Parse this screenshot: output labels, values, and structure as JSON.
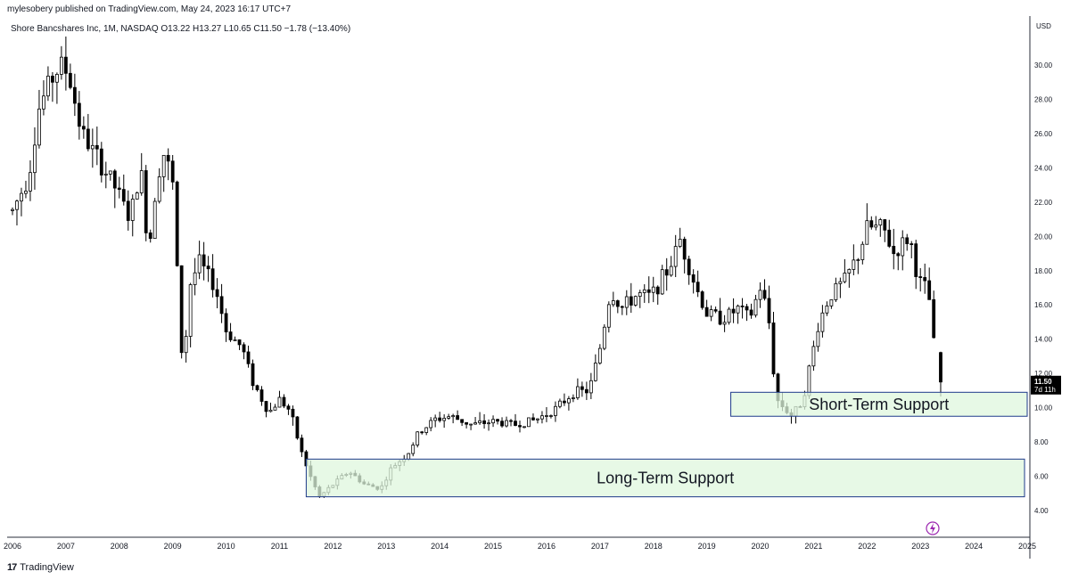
{
  "header": {
    "published_line": "mylesobery published on TradingView.com, May 24, 2023 16:17 UTC+7",
    "legend_line": "Shore Bancshares Inc, 1M, NASDAQ  O13.22  H13.27  L10.65  C11.50  −1.78 (−13.40%)"
  },
  "footer": {
    "brand": "TradingView",
    "logo_glyph": "17"
  },
  "colors": {
    "up": "#ffffff",
    "down": "#000000",
    "wick": "#000000",
    "zone_fill": "#dff7de",
    "zone_border": "#1e3a8a",
    "grid": "#ffffff"
  },
  "chart_data": {
    "type": "candlestick",
    "interval": "1M",
    "currency": "USD",
    "ylim": [
      3.0,
      32.0
    ],
    "y_ticks": [
      "4.00",
      "6.00",
      "8.00",
      "10.00",
      "12.00",
      "14.00",
      "16.00",
      "18.00",
      "20.00",
      "22.00",
      "24.00",
      "26.00",
      "28.00",
      "30.00"
    ],
    "x_ticks": [
      "2006",
      "2007",
      "2008",
      "2009",
      "2010",
      "2011",
      "2012",
      "2013",
      "2014",
      "2015",
      "2016",
      "2017",
      "2018",
      "2019",
      "2020",
      "2021",
      "2022",
      "2023",
      "2024",
      "2025"
    ],
    "x_range_years": [
      2005.9,
      2025.05
    ],
    "last_price": {
      "value": "11.50",
      "countdown": "7d 11h"
    },
    "zones": [
      {
        "label": "Long-Term Support",
        "x0": 2011.5,
        "x1": 2024.95,
        "y0": 4.8,
        "y1": 7.0
      },
      {
        "label": "Short-Term Support",
        "x0": 2019.45,
        "x1": 2025.0,
        "y0": 9.5,
        "y1": 10.9
      }
    ],
    "anchors": [
      [
        2006.0,
        21.5
      ],
      [
        2006.3,
        23.5
      ],
      [
        2006.5,
        27.5
      ],
      [
        2006.7,
        29.0
      ],
      [
        2006.9,
        30.0
      ],
      [
        2007.05,
        29.5
      ],
      [
        2007.3,
        26.0
      ],
      [
        2007.6,
        24.5
      ],
      [
        2007.9,
        23.0
      ],
      [
        2008.2,
        21.0
      ],
      [
        2008.4,
        24.0
      ],
      [
        2008.55,
        19.0
      ],
      [
        2008.7,
        23.5
      ],
      [
        2008.85,
        25.0
      ],
      [
        2009.0,
        23.0
      ],
      [
        2009.1,
        17.0
      ],
      [
        2009.2,
        11.5
      ],
      [
        2009.3,
        17.0
      ],
      [
        2009.5,
        18.5
      ],
      [
        2009.8,
        17.0
      ],
      [
        2010.0,
        14.5
      ],
      [
        2010.3,
        13.5
      ],
      [
        2010.5,
        11.5
      ],
      [
        2010.8,
        9.7
      ],
      [
        2011.0,
        10.5
      ],
      [
        2011.2,
        9.8
      ],
      [
        2011.4,
        7.5
      ],
      [
        2011.6,
        5.8
      ],
      [
        2011.75,
        4.8
      ],
      [
        2012.0,
        5.5
      ],
      [
        2012.3,
        6.3
      ],
      [
        2012.6,
        5.5
      ],
      [
        2012.9,
        5.3
      ],
      [
        2013.1,
        6.5
      ],
      [
        2013.4,
        7.3
      ],
      [
        2013.6,
        8.5
      ],
      [
        2013.9,
        9.3
      ],
      [
        2014.2,
        9.5
      ],
      [
        2014.6,
        9.0
      ],
      [
        2015.0,
        9.2
      ],
      [
        2015.4,
        9.0
      ],
      [
        2015.8,
        9.3
      ],
      [
        2016.2,
        10.0
      ],
      [
        2016.5,
        10.9
      ],
      [
        2016.8,
        11.0
      ],
      [
        2017.0,
        13.5
      ],
      [
        2017.2,
        16.8
      ],
      [
        2017.4,
        15.8
      ],
      [
        2017.7,
        16.6
      ],
      [
        2017.95,
        16.5
      ],
      [
        2018.3,
        18.2
      ],
      [
        2018.5,
        19.8
      ],
      [
        2018.8,
        17.0
      ],
      [
        2019.0,
        15.5
      ],
      [
        2019.3,
        15.2
      ],
      [
        2019.6,
        15.8
      ],
      [
        2019.8,
        15.2
      ],
      [
        2020.0,
        17.0
      ],
      [
        2020.15,
        15.5
      ],
      [
        2020.3,
        10.5
      ],
      [
        2020.6,
        9.5
      ],
      [
        2020.8,
        10.5
      ],
      [
        2021.1,
        15.0
      ],
      [
        2021.3,
        16.5
      ],
      [
        2021.6,
        17.5
      ],
      [
        2021.85,
        19.0
      ],
      [
        2022.0,
        20.5
      ],
      [
        2022.3,
        20.5
      ],
      [
        2022.5,
        19.0
      ],
      [
        2022.8,
        20.0
      ],
      [
        2022.95,
        17.5
      ],
      [
        2023.15,
        16.8
      ],
      [
        2023.25,
        13.8
      ],
      [
        2023.38,
        11.5
      ]
    ],
    "last_candle": {
      "x": 2023.38,
      "o": 13.22,
      "h": 13.27,
      "l": 10.65,
      "c": 11.5
    }
  }
}
